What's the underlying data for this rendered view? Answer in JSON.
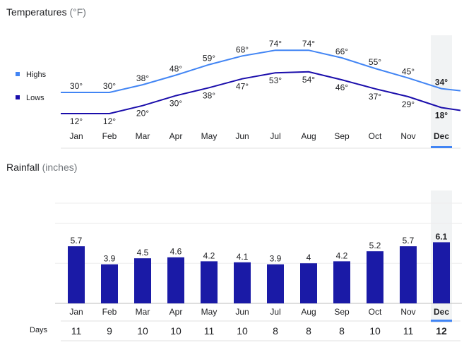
{
  "temperatures": {
    "title": "Temperatures",
    "unit": "(°F)",
    "legend": {
      "highs": "Highs",
      "lows": "Lows"
    },
    "highs_color": "#4285f4",
    "lows_color": "#1a0dab"
  },
  "rainfall": {
    "title": "Rainfall",
    "unit": "(inches)",
    "bar_color": "#1a1aa6",
    "days_label": "Days"
  },
  "selected_month_index": 11,
  "chart_data": [
    {
      "type": "line",
      "title": "Temperatures (°F)",
      "categories": [
        "Jan",
        "Feb",
        "Mar",
        "Apr",
        "May",
        "Jun",
        "Jul",
        "Aug",
        "Sep",
        "Oct",
        "Nov",
        "Dec"
      ],
      "series": [
        {
          "name": "Highs",
          "values": [
            30,
            30,
            38,
            48,
            59,
            68,
            74,
            74,
            66,
            55,
            45,
            34
          ],
          "labels": [
            "30°",
            "30°",
            "38°",
            "48°",
            "59°",
            "68°",
            "74°",
            "74°",
            "66°",
            "55°",
            "45°",
            "34°"
          ]
        },
        {
          "name": "Lows",
          "values": [
            12,
            12,
            20,
            30,
            38,
            47,
            53,
            54,
            46,
            37,
            29,
            18
          ],
          "labels": [
            "12°",
            "12°",
            "20°",
            "30°",
            "38°",
            "47°",
            "53°",
            "54°",
            "46°",
            "37°",
            "29°",
            "18°"
          ]
        }
      ],
      "legend_position": "left"
    },
    {
      "type": "bar",
      "title": "Rainfall (inches)",
      "categories": [
        "Jan",
        "Feb",
        "Mar",
        "Apr",
        "May",
        "Jun",
        "Jul",
        "Aug",
        "Sep",
        "Oct",
        "Nov",
        "Dec"
      ],
      "values": [
        5.7,
        3.9,
        4.5,
        4.6,
        4.2,
        4.1,
        3.9,
        4,
        4.2,
        5.2,
        5.7,
        6.1
      ],
      "labels": [
        "5.7",
        "3.9",
        "4.5",
        "4.6",
        "4.2",
        "4.1",
        "3.9",
        "4",
        "4.2",
        "5.2",
        "5.7",
        "6.1"
      ],
      "ylim": [
        0,
        10
      ],
      "grid": true,
      "days_label": "Days",
      "days": [
        "11",
        "9",
        "10",
        "10",
        "11",
        "10",
        "8",
        "8",
        "8",
        "10",
        "11",
        "12"
      ]
    }
  ]
}
